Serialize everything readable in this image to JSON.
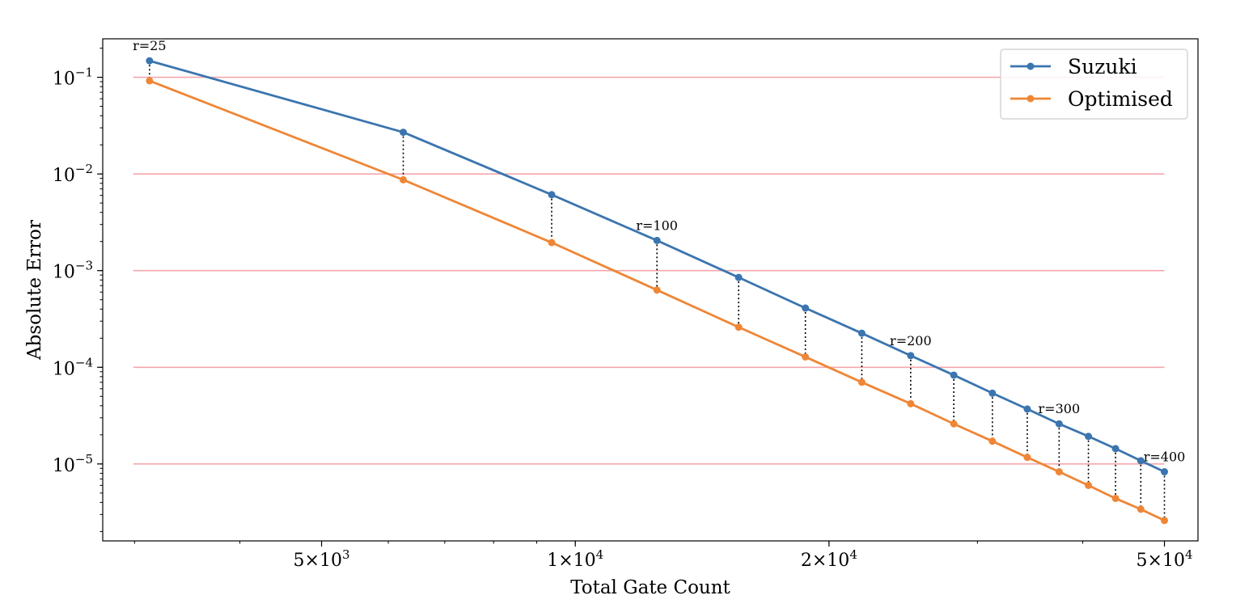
{
  "chart_data": {
    "type": "line",
    "xlabel": "Total Gate Count",
    "ylabel": "Absolute Error",
    "xscale": "log",
    "yscale": "log",
    "xlim": [
      2750,
      54800
    ],
    "ylim": [
      1.6e-06,
      0.25
    ],
    "x_ticks": [
      {
        "value": 5000,
        "mantissa": "5×10",
        "exp": "3"
      },
      {
        "value": 10000,
        "mantissa": "1×10",
        "exp": "4"
      },
      {
        "value": 20000,
        "mantissa": "2×10",
        "exp": "4"
      },
      {
        "value": 50000,
        "mantissa": "5×10",
        "exp": "4"
      }
    ],
    "y_ticks": [
      {
        "value": 0.1,
        "mantissa": "10",
        "exp": "−1"
      },
      {
        "value": 0.01,
        "mantissa": "10",
        "exp": "−2"
      },
      {
        "value": 0.001,
        "mantissa": "10",
        "exp": "−3"
      },
      {
        "value": 0.0001,
        "mantissa": "10",
        "exp": "−4"
      },
      {
        "value": 1e-05,
        "mantissa": "10",
        "exp": "−5"
      }
    ],
    "hlines": [
      0.1,
      0.01,
      0.001,
      0.0001,
      1e-05
    ],
    "hline_color": "#f4a7ad",
    "x": [
      3125,
      6250,
      9375,
      12500,
      15625,
      18750,
      21875,
      25000,
      28125,
      31250,
      34375,
      37500,
      40625,
      43750,
      46875,
      50000
    ],
    "series": [
      {
        "name": "Suzuki",
        "color": "#3b75af",
        "values": [
          0.148,
          0.027,
          0.0061,
          0.00205,
          0.00085,
          0.00041,
          0.000225,
          0.000132,
          8.3e-05,
          5.4e-05,
          3.7e-05,
          2.6e-05,
          1.93e-05,
          1.44e-05,
          1.08e-05,
          8.3e-06
        ]
      },
      {
        "name": "Optimised",
        "color": "#ef8636",
        "values": [
          0.092,
          0.0087,
          0.00195,
          0.00063,
          0.00026,
          0.000128,
          7e-05,
          4.2e-05,
          2.6e-05,
          1.72e-05,
          1.17e-05,
          8.3e-06,
          6e-06,
          4.4e-06,
          3.4e-06,
          2.6e-06
        ]
      }
    ],
    "annotations": [
      {
        "text": "r=25",
        "x": 3125,
        "series": 0
      },
      {
        "text": "r=100",
        "x": 12500,
        "series": 0
      },
      {
        "text": "r=200",
        "x": 25000,
        "series": 0
      },
      {
        "text": "r=300",
        "x": 37500,
        "series": 0
      },
      {
        "text": "r=400",
        "x": 50000,
        "series": 0
      }
    ],
    "legend": {
      "placement": "top-right",
      "entries": [
        "Suzuki",
        "Optimised"
      ]
    },
    "grid": false
  }
}
